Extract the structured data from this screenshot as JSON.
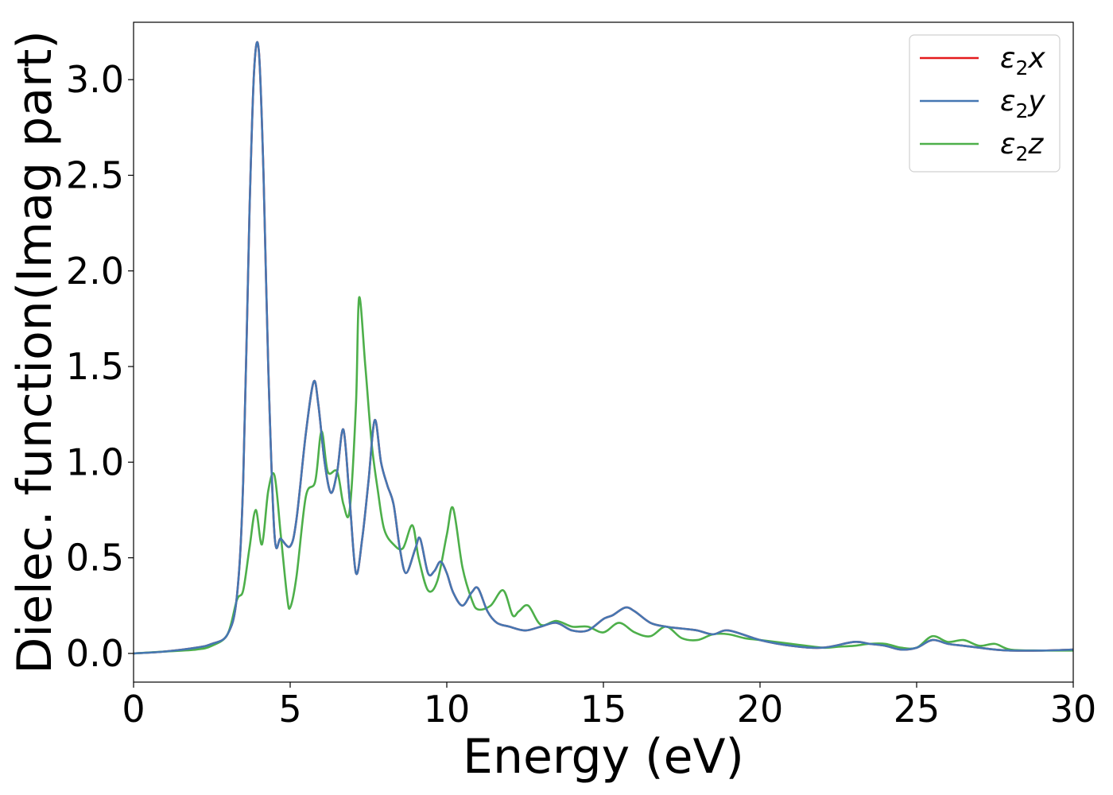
{
  "chart_data": {
    "type": "line",
    "title": "",
    "xlabel": "Energy (eV)",
    "ylabel": "Dielec. function(Imag part)",
    "xlim": [
      0,
      30
    ],
    "ylim": [
      -0.15,
      3.3
    ],
    "xticks": [
      0,
      5,
      10,
      15,
      20,
      25,
      30
    ],
    "yticks": [
      0.0,
      0.5,
      1.0,
      1.5,
      2.0,
      2.5,
      3.0
    ],
    "xtick_labels": [
      "0",
      "5",
      "10",
      "15",
      "20",
      "25",
      "30"
    ],
    "ytick_labels": [
      "0.0",
      "0.5",
      "1.0",
      "1.5",
      "2.0",
      "2.5",
      "3.0"
    ],
    "grid": false,
    "legend_position": "top-right",
    "series": [
      {
        "name": "ε₂x",
        "name_base": "ε",
        "name_sub": "2",
        "name_suffix": "x",
        "color": "#e41a1c",
        "x": [
          0,
          1,
          2,
          2.5,
          3,
          3.3,
          3.5,
          3.7,
          3.85,
          4.0,
          4.15,
          4.3,
          4.5,
          4.7,
          5.0,
          5.2,
          5.5,
          5.75,
          5.9,
          6.1,
          6.3,
          6.5,
          6.7,
          6.9,
          7.1,
          7.3,
          7.5,
          7.7,
          7.9,
          8.1,
          8.3,
          8.5,
          8.7,
          9.0,
          9.15,
          9.4,
          9.6,
          9.8,
          10.0,
          10.2,
          10.5,
          10.8,
          11.0,
          11.3,
          11.6,
          12.0,
          12.5,
          13.0,
          13.5,
          14.0,
          14.5,
          15.0,
          15.3,
          15.7,
          16.0,
          16.5,
          17.0,
          17.5,
          18.0,
          18.5,
          19.0,
          20.0,
          21.0,
          22.0,
          23.0,
          23.5,
          24.0,
          24.5,
          25.0,
          25.5,
          26.0,
          26.5,
          27.0,
          27.5,
          28.0,
          29.0,
          30.0
        ],
        "y": [
          0.0,
          0.01,
          0.03,
          0.05,
          0.1,
          0.3,
          0.9,
          2.3,
          3.05,
          3.15,
          2.5,
          1.5,
          0.62,
          0.6,
          0.56,
          0.7,
          1.15,
          1.42,
          1.3,
          1.0,
          0.84,
          0.95,
          1.17,
          0.8,
          0.42,
          0.6,
          0.9,
          1.22,
          1.0,
          0.88,
          0.78,
          0.55,
          0.42,
          0.55,
          0.6,
          0.42,
          0.43,
          0.48,
          0.42,
          0.32,
          0.25,
          0.32,
          0.34,
          0.22,
          0.16,
          0.14,
          0.12,
          0.14,
          0.16,
          0.12,
          0.12,
          0.18,
          0.2,
          0.24,
          0.22,
          0.16,
          0.14,
          0.13,
          0.12,
          0.1,
          0.12,
          0.07,
          0.04,
          0.03,
          0.06,
          0.05,
          0.04,
          0.02,
          0.03,
          0.07,
          0.05,
          0.04,
          0.03,
          0.02,
          0.015,
          0.015,
          0.02
        ]
      },
      {
        "name": "ε₂y",
        "name_base": "ε",
        "name_sub": "2",
        "name_suffix": "y",
        "color": "#4577b2",
        "x": [
          0,
          1,
          2,
          2.5,
          3,
          3.3,
          3.5,
          3.7,
          3.85,
          4.0,
          4.15,
          4.3,
          4.5,
          4.7,
          5.0,
          5.2,
          5.5,
          5.75,
          5.9,
          6.1,
          6.3,
          6.5,
          6.7,
          6.9,
          7.1,
          7.3,
          7.5,
          7.7,
          7.9,
          8.1,
          8.3,
          8.5,
          8.7,
          9.0,
          9.15,
          9.4,
          9.6,
          9.8,
          10.0,
          10.2,
          10.5,
          10.8,
          11.0,
          11.3,
          11.6,
          12.0,
          12.5,
          13.0,
          13.5,
          14.0,
          14.5,
          15.0,
          15.3,
          15.7,
          16.0,
          16.5,
          17.0,
          17.5,
          18.0,
          18.5,
          19.0,
          20.0,
          21.0,
          22.0,
          23.0,
          23.5,
          24.0,
          24.5,
          25.0,
          25.5,
          26.0,
          26.5,
          27.0,
          27.5,
          28.0,
          29.0,
          30.0
        ],
        "y": [
          0.0,
          0.01,
          0.03,
          0.05,
          0.1,
          0.3,
          0.9,
          2.3,
          3.05,
          3.15,
          2.5,
          1.5,
          0.62,
          0.6,
          0.56,
          0.7,
          1.15,
          1.42,
          1.3,
          1.0,
          0.84,
          0.95,
          1.17,
          0.8,
          0.42,
          0.6,
          0.9,
          1.22,
          1.0,
          0.88,
          0.78,
          0.55,
          0.42,
          0.55,
          0.6,
          0.42,
          0.43,
          0.48,
          0.42,
          0.32,
          0.25,
          0.32,
          0.34,
          0.22,
          0.16,
          0.14,
          0.12,
          0.14,
          0.16,
          0.12,
          0.12,
          0.18,
          0.2,
          0.24,
          0.22,
          0.16,
          0.14,
          0.13,
          0.12,
          0.1,
          0.12,
          0.07,
          0.04,
          0.03,
          0.06,
          0.05,
          0.04,
          0.02,
          0.03,
          0.07,
          0.05,
          0.04,
          0.03,
          0.02,
          0.015,
          0.015,
          0.02
        ]
      },
      {
        "name": "ε₂z",
        "name_base": "ε",
        "name_sub": "2",
        "name_suffix": "z",
        "color": "#4daf4a",
        "x": [
          0,
          1,
          2,
          2.5,
          3,
          3.3,
          3.5,
          3.7,
          3.9,
          4.1,
          4.3,
          4.5,
          4.7,
          4.9,
          5.0,
          5.2,
          5.5,
          5.8,
          6.0,
          6.2,
          6.5,
          6.7,
          6.9,
          7.1,
          7.2,
          7.4,
          7.6,
          7.8,
          8.0,
          8.3,
          8.6,
          8.9,
          9.1,
          9.4,
          9.7,
          10.0,
          10.2,
          10.5,
          10.8,
          11.0,
          11.4,
          11.8,
          12.1,
          12.3,
          12.6,
          13.0,
          13.5,
          14.0,
          14.5,
          15.0,
          15.5,
          16.0,
          16.5,
          17.0,
          17.5,
          18.0,
          18.5,
          19.0,
          19.5,
          20.0,
          21.0,
          22.0,
          22.5,
          23.0,
          23.5,
          24.0,
          24.5,
          25.0,
          25.5,
          26.0,
          26.5,
          27.0,
          27.5,
          28.0,
          29.0,
          30.0
        ],
        "y": [
          0.0,
          0.01,
          0.02,
          0.04,
          0.1,
          0.28,
          0.33,
          0.55,
          0.75,
          0.57,
          0.85,
          0.93,
          0.62,
          0.3,
          0.24,
          0.4,
          0.82,
          0.9,
          1.16,
          0.95,
          0.95,
          0.78,
          0.75,
          1.3,
          1.86,
          1.5,
          1.1,
          0.85,
          0.65,
          0.57,
          0.55,
          0.67,
          0.5,
          0.33,
          0.38,
          0.62,
          0.76,
          0.45,
          0.28,
          0.23,
          0.25,
          0.33,
          0.2,
          0.22,
          0.25,
          0.15,
          0.17,
          0.14,
          0.14,
          0.11,
          0.16,
          0.11,
          0.09,
          0.14,
          0.08,
          0.07,
          0.1,
          0.1,
          0.08,
          0.07,
          0.05,
          0.03,
          0.035,
          0.04,
          0.05,
          0.05,
          0.03,
          0.03,
          0.09,
          0.06,
          0.07,
          0.04,
          0.05,
          0.02,
          0.015,
          0.015
        ]
      }
    ]
  }
}
